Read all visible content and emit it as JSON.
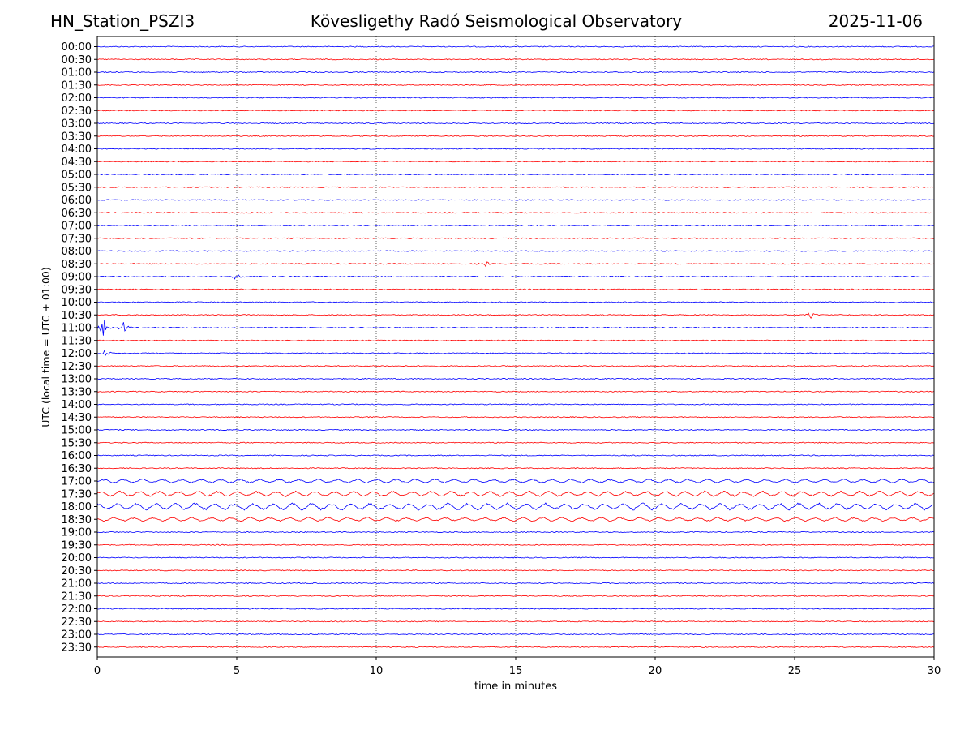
{
  "header": {
    "station": "HN_Station_PSZI3",
    "observatory": "Kövesligethy Radó Seismological Observatory",
    "date": "2025-11-06"
  },
  "chart_data": {
    "type": "line",
    "title": "Kövesligethy Radó Seismological Observatory",
    "xlabel": "time in minutes",
    "ylabel": "UTC (local time = UTC + 01:00)",
    "xlim": [
      0,
      30
    ],
    "x_ticks": [
      0,
      5,
      10,
      15,
      20,
      25,
      30
    ],
    "row_labels": [
      "00:00",
      "00:30",
      "01:00",
      "01:30",
      "02:00",
      "02:30",
      "03:00",
      "03:30",
      "04:00",
      "04:30",
      "05:00",
      "05:30",
      "06:00",
      "06:30",
      "07:00",
      "07:30",
      "08:00",
      "08:30",
      "09:00",
      "09:30",
      "10:00",
      "10:30",
      "11:00",
      "11:30",
      "12:00",
      "12:30",
      "13:00",
      "13:30",
      "14:00",
      "14:30",
      "15:00",
      "15:30",
      "16:00",
      "16:30",
      "17:00",
      "17:30",
      "18:00",
      "18:30",
      "19:00",
      "19:30",
      "20:00",
      "20:30",
      "21:00",
      "21:30",
      "22:00",
      "22:30",
      "23:00",
      "23:30"
    ],
    "trace_colors": [
      "#0000ff",
      "#ff0000"
    ],
    "grid": "vertical dotted at x ticks",
    "events": [
      {
        "row": "08:30",
        "minute": 13.9,
        "amplitude": 0.3
      },
      {
        "row": "09:00",
        "minute": 5.0,
        "amplitude": 0.55
      },
      {
        "row": "10:30",
        "minute": 25.6,
        "amplitude": 0.4
      },
      {
        "row": "11:00",
        "minute": 0.25,
        "amplitude": 1.0
      },
      {
        "row": "11:00",
        "minute": 0.95,
        "amplitude": 0.55
      },
      {
        "row": "12:00",
        "minute": 0.25,
        "amplitude": 0.45
      }
    ],
    "noisy_rows": [
      {
        "row": "17:00",
        "amplitude": 0.25
      },
      {
        "row": "17:30",
        "amplitude": 0.35
      },
      {
        "row": "18:00",
        "amplitude": 0.45
      },
      {
        "row": "18:30",
        "amplitude": 0.25
      }
    ]
  }
}
